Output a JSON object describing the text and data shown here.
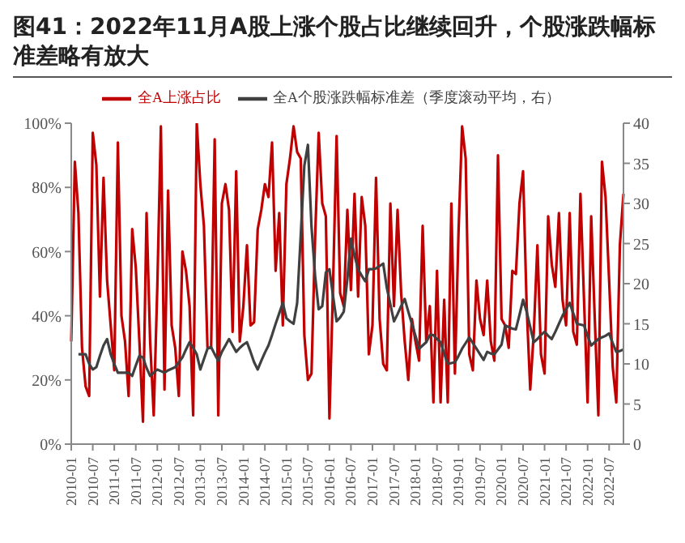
{
  "chart_data": {
    "type": "line",
    "title": "图41：2022年11月A股上涨个股占比继续回升，个股涨跌幅标准差略有放大",
    "categories": [
      "2010-01",
      null,
      null,
      null,
      null,
      null,
      "2010-07",
      null,
      null,
      null,
      null,
      null,
      "2011-01",
      null,
      null,
      null,
      null,
      null,
      "2011-07",
      null,
      null,
      null,
      null,
      null,
      "2012-01",
      null,
      null,
      null,
      null,
      null,
      "2012-07",
      null,
      null,
      null,
      null,
      null,
      "2013-01",
      null,
      null,
      null,
      null,
      null,
      "2013-07",
      null,
      null,
      null,
      null,
      null,
      "2014-01",
      null,
      null,
      null,
      null,
      null,
      "2014-07",
      null,
      null,
      null,
      null,
      null,
      "2015-01",
      null,
      null,
      null,
      null,
      null,
      "2015-07",
      null,
      null,
      null,
      null,
      null,
      "2016-01",
      null,
      null,
      null,
      null,
      null,
      "2016-07",
      null,
      null,
      null,
      null,
      null,
      "2017-01",
      null,
      null,
      null,
      null,
      null,
      "2017-07",
      null,
      null,
      null,
      null,
      null,
      "2018-01",
      null,
      null,
      null,
      null,
      null,
      "2018-07",
      null,
      null,
      null,
      null,
      null,
      "2019-01",
      null,
      null,
      null,
      null,
      null,
      "2019-07",
      null,
      null,
      null,
      null,
      null,
      "2020-01",
      null,
      null,
      null,
      null,
      null,
      "2020-07",
      null,
      null,
      null,
      null,
      null,
      "2021-01",
      null,
      null,
      null,
      null,
      null,
      "2021-07",
      null,
      null,
      null,
      null,
      null,
      "2022-01",
      null,
      null,
      null,
      null,
      null,
      "2022-07",
      null,
      null,
      null,
      null
    ],
    "series": [
      {
        "name": "全A上涨占比",
        "color": "#c00000",
        "values": [
          32,
          88,
          72,
          30,
          18,
          15,
          97,
          87,
          46,
          83,
          51,
          37,
          23,
          94,
          40,
          32,
          15,
          67,
          55,
          32,
          7,
          72,
          32,
          9,
          49,
          99,
          17,
          79,
          37,
          30,
          15,
          60,
          54,
          43,
          9,
          100,
          81,
          68,
          30,
          30,
          95,
          9,
          75,
          81,
          73,
          35,
          85,
          32,
          43,
          62,
          37,
          38,
          67,
          73,
          81,
          77,
          94,
          54,
          72,
          37,
          81,
          89,
          99,
          91,
          89,
          34,
          20,
          22,
          64,
          97,
          75,
          71,
          8,
          49,
          96,
          47,
          43,
          73,
          48,
          78,
          46,
          77,
          68,
          28,
          37,
          83,
          39,
          25,
          23,
          75,
          43,
          73,
          47,
          32,
          20,
          39,
          32,
          26,
          68,
          32,
          43,
          13,
          54,
          13,
          45,
          13,
          75,
          22,
          66,
          99,
          89,
          28,
          23,
          51,
          39,
          34,
          51,
          32,
          26,
          90,
          39,
          37,
          30,
          54,
          53,
          75,
          85,
          43,
          17,
          35,
          62,
          28,
          22,
          71,
          56,
          49,
          72,
          45,
          37,
          72,
          35,
          31,
          78,
          45,
          13,
          71,
          39,
          9,
          88,
          77,
          51,
          24,
          13,
          62,
          78
        ]
      },
      {
        "name": "全A个股涨跌幅标准差（季度滚动平均，右）",
        "color": "#404040",
        "axis": "y2",
        "values": [
          null,
          null,
          11.2,
          11.2,
          11.2,
          10.0,
          9.3,
          9.6,
          11.0,
          12.3,
          13.1,
          11.2,
          10.0,
          8.9,
          8.9,
          8.9,
          8.9,
          8.5,
          9.8,
          11.0,
          10.8,
          9.5,
          8.5,
          8.9,
          9.3,
          9.1,
          8.9,
          9.2,
          9.4,
          9.6,
          10.2,
          10.8,
          11.8,
          12.7,
          12.0,
          11.2,
          9.3,
          10.6,
          11.9,
          12.1,
          11.2,
          10.4,
          11.5,
          12.3,
          13.1,
          12.3,
          11.5,
          12.0,
          12.4,
          12.7,
          11.5,
          10.2,
          9.3,
          10.4,
          11.4,
          12.3,
          13.6,
          15.0,
          16.3,
          17.6,
          15.7,
          15.3,
          15.0,
          17.6,
          26.0,
          34.7,
          37.3,
          27.1,
          21.0,
          16.8,
          17.2,
          21.4,
          21.8,
          18.5,
          15.3,
          15.8,
          16.5,
          20.6,
          25.6,
          23.5,
          21.8,
          21.0,
          20.3,
          21.8,
          21.8,
          21.9,
          22.2,
          22.5,
          19.5,
          17.4,
          15.3,
          16.2,
          17.2,
          18.1,
          16.5,
          15.0,
          13.5,
          11.9,
          12.3,
          12.7,
          13.6,
          13.6,
          13.1,
          12.7,
          11.3,
          10.0,
          10.1,
          10.2,
          11.0,
          11.9,
          12.6,
          13.3,
          12.6,
          11.9,
          11.2,
          10.5,
          11.5,
          11.3,
          11.2,
          11.8,
          12.4,
          14.8,
          14.6,
          14.4,
          14.3,
          16.1,
          18.0,
          16.5,
          14.6,
          12.7,
          13.1,
          13.6,
          14.0,
          13.5,
          13.1,
          14.0,
          15.0,
          16.0,
          16.8,
          17.6,
          16.3,
          15.0,
          14.9,
          14.8,
          13.5,
          12.3,
          12.7,
          13.1,
          13.3,
          13.5,
          13.8,
          12.6,
          11.5,
          11.6,
          11.8
        ]
      }
    ],
    "ylim": [
      0,
      100
    ],
    "yticks": [
      {
        "value": 0,
        "label": "0%"
      },
      {
        "value": 20,
        "label": "20%"
      },
      {
        "value": 40,
        "label": "40%"
      },
      {
        "value": 60,
        "label": "60%"
      },
      {
        "value": 80,
        "label": "80%"
      },
      {
        "value": 100,
        "label": "100%"
      }
    ],
    "y2lim": [
      0,
      40
    ],
    "y2ticks": [
      0,
      5,
      10,
      15,
      20,
      25,
      30,
      35,
      40
    ],
    "legend": "top",
    "grid": false,
    "marker": "none",
    "line_style": "solid"
  }
}
